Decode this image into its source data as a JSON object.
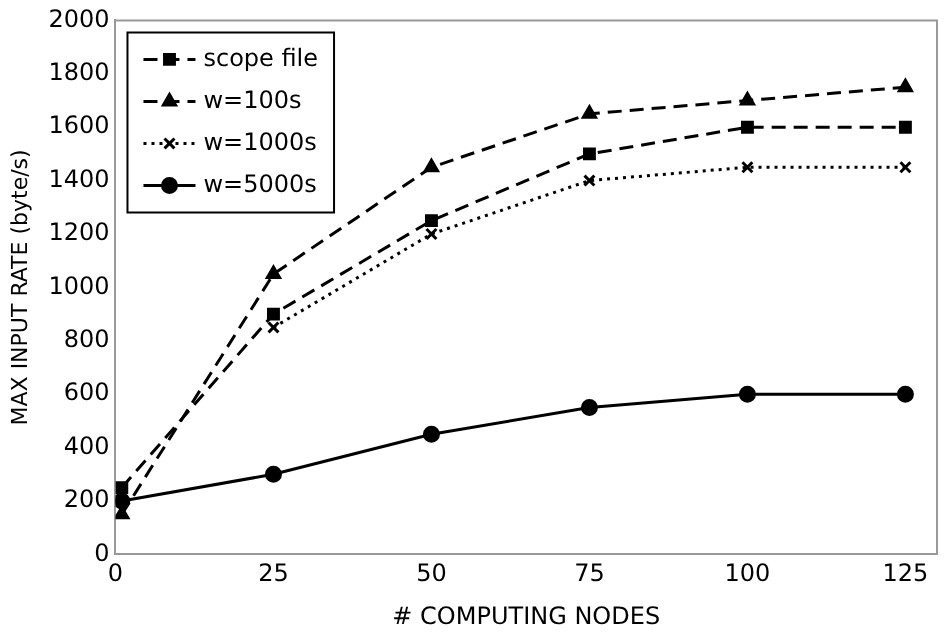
{
  "chart_data": {
    "type": "line",
    "xlabel": "# COMPUTING NODES",
    "ylabel": "MAX INPUT RATE (byte/s)",
    "x": [
      1,
      25,
      50,
      75,
      100,
      125
    ],
    "series": [
      {
        "name": "scope file",
        "color": "#000000",
        "values": [
          250,
          900,
          1250,
          1500,
          1600,
          1600
        ],
        "marker": "square",
        "line_style": "dashed"
      },
      {
        "name": "w=100s",
        "color": "#000000",
        "values": [
          150,
          1050,
          1450,
          1650,
          1700,
          1750
        ],
        "marker": "triangle",
        "line_style": "dashed"
      },
      {
        "name": "w=1000s",
        "color": "#000000",
        "values": [
          null,
          850,
          1200,
          1400,
          1450,
          1450
        ],
        "marker": "cross",
        "line_style": "dotted"
      },
      {
        "name": "w=5000s",
        "color": "#000000",
        "values": [
          200,
          300,
          450,
          550,
          600,
          600
        ],
        "marker": "circle",
        "line_style": "solid"
      }
    ],
    "xlim": [
      0,
      130
    ],
    "xticks": [
      0,
      25,
      50,
      75,
      100,
      125
    ],
    "ylim": [
      0,
      2000
    ],
    "yticks": [
      0,
      200,
      400,
      600,
      800,
      1000,
      1200,
      1400,
      1600,
      1800,
      2000
    ],
    "grid": false,
    "legend": "top left"
  }
}
